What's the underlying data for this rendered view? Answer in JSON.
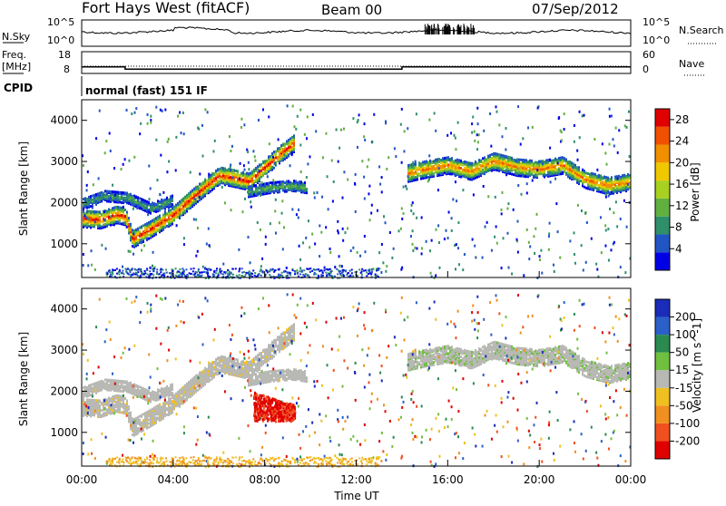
{
  "header": {
    "station": "Fort Hays West (fitACF)",
    "beam": "Beam 00",
    "date": "07/Sep/2012"
  },
  "top_panel": {
    "left_label": "N.Sky",
    "right_label": "N.Search",
    "left_ticks": [
      "10^5",
      "10^0"
    ],
    "right_ticks": [
      "10^5",
      "10^0"
    ]
  },
  "freq_panel": {
    "left_label_1": "Freq.",
    "left_label_2": "[MHz]",
    "right_label": "Nave",
    "left_ticks": [
      "18",
      "8"
    ],
    "right_ticks": [
      "60",
      "0"
    ],
    "freq_steps_utc": [
      {
        "from": 0.0,
        "to": 1.9,
        "value": 11.0
      },
      {
        "from": 1.9,
        "to": 14.0,
        "value": 10.0
      },
      {
        "from": 14.0,
        "to": 24.0,
        "value": 11.0
      }
    ]
  },
  "cpid_panel": {
    "label": "CPID",
    "value": "normal (fast) 151 IF"
  },
  "x_axis": {
    "label": "Time UT",
    "ticks": [
      "00:00",
      "04:00",
      "08:00",
      "12:00",
      "16:00",
      "20:00",
      "00:00"
    ],
    "range_hours": [
      0,
      24
    ]
  },
  "colors": {
    "power_scale": [
      "#0000e6",
      "#2255c4",
      "#2f8f6a",
      "#60b040",
      "#a8d020",
      "#f0c800",
      "#f09000",
      "#f05000",
      "#e00000"
    ],
    "velocity_scale": [
      "#1a2cb8",
      "#2a60c8",
      "#2a8a50",
      "#70c040",
      "#b8b8b4",
      "#f0c020",
      "#f09020",
      "#f05020",
      "#e00000"
    ]
  },
  "chart_data": [
    {
      "type": "heatmap",
      "title": "",
      "xlabel": "Time UT",
      "ylabel": "Slant Range [km]",
      "xlim": [
        0,
        24
      ],
      "ylim": [
        180,
        4500
      ],
      "y_ticks": [
        "1000",
        "2000",
        "3000",
        "4000"
      ],
      "colorbar": {
        "label": "Power [dB]",
        "ticks": [
          "4",
          "8",
          "12",
          "16",
          "20",
          "24",
          "28"
        ],
        "range": [
          0,
          30
        ]
      },
      "echo_bands": [
        {
          "name": "main_trace",
          "points": [
            [
              0.0,
              1650
            ],
            [
              0.8,
              1620
            ],
            [
              1.5,
              1750
            ],
            [
              1.9,
              1700
            ],
            [
              2.2,
              1150
            ],
            [
              3.0,
              1400
            ],
            [
              4.0,
              1750
            ],
            [
              5.0,
              2250
            ],
            [
              6.0,
              2700
            ],
            [
              6.5,
              2650
            ],
            [
              7.3,
              2550
            ],
            [
              7.8,
              2800
            ],
            [
              8.6,
              3200
            ],
            [
              9.3,
              3500
            ]
          ],
          "peak_power": 26
        },
        {
          "name": "secondary_trace",
          "points": [
            [
              0.0,
              2000
            ],
            [
              1.0,
              2200
            ],
            [
              2.0,
              2150
            ],
            [
              3.0,
              1900
            ],
            [
              4.0,
              2100
            ]
          ],
          "peak_power": 8
        },
        {
          "name": "mid_band",
          "points": [
            [
              7.2,
              2300
            ],
            [
              8.2,
              2400
            ],
            [
              9.2,
              2450
            ],
            [
              9.8,
              2400
            ]
          ],
          "peak_power": 10
        },
        {
          "name": "late_trace",
          "points": [
            [
              14.2,
              2750
            ],
            [
              15.0,
              2850
            ],
            [
              16.0,
              2950
            ],
            [
              17.0,
              2800
            ],
            [
              18.0,
              3050
            ],
            [
              19.0,
              2900
            ],
            [
              20.0,
              2850
            ],
            [
              21.0,
              2950
            ],
            [
              22.0,
              2600
            ],
            [
              23.0,
              2450
            ],
            [
              24.0,
              2550
            ]
          ],
          "peak_power": 22
        }
      ]
    },
    {
      "type": "heatmap",
      "title": "",
      "xlabel": "Time UT",
      "ylabel": "Slant Range [km]",
      "xlim": [
        0,
        24
      ],
      "ylim": [
        180,
        4500
      ],
      "y_ticks": [
        "1000",
        "2000",
        "3000",
        "4000"
      ],
      "colorbar": {
        "label": "Velocity [m s^-1]",
        "ticks": [
          "200",
          "100",
          "50",
          "15",
          "-15",
          "-50",
          "-100",
          "-200"
        ],
        "range": [
          -250,
          250
        ]
      },
      "velocity_regions": [
        {
          "name": "ground_scatter",
          "velocity": 0,
          "from_utc": 0.0,
          "to_utc": 9.3
        },
        {
          "name": "negative_patch",
          "velocity": -200,
          "from_utc": 7.5,
          "to_utc": 9.3,
          "range_km": [
            1300,
            2000
          ]
        },
        {
          "name": "late_ground_scatter",
          "velocity": 0,
          "from_utc": 14.0,
          "to_utc": 24.0
        },
        {
          "name": "low_range_echo",
          "velocity": -60,
          "from_utc": 1.0,
          "to_utc": 13.0,
          "range_km": [
            180,
            420
          ]
        }
      ]
    }
  ]
}
